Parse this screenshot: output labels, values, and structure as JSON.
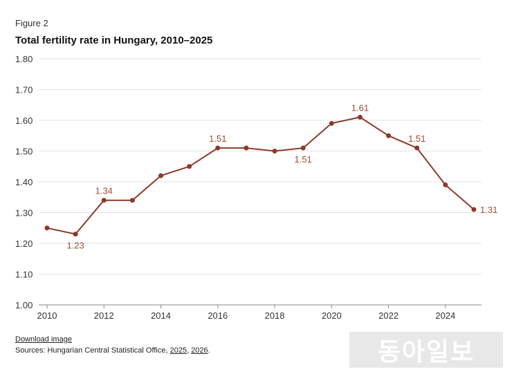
{
  "figure_label": "Figure 2",
  "title": "Total fertility rate in Hungary, 2010–2025",
  "footer": {
    "download_label": "Download image",
    "sources_prefix": "Sources: Hungarian Central Statistical Office, ",
    "source_link_1": "2025",
    "separator": ", ",
    "source_link_2": "2026",
    "suffix": "."
  },
  "watermark_text": "동아일보",
  "colors": {
    "line": "#8b3a2b",
    "label": "#a04a35",
    "grid": "#e3e3e3",
    "axis": "#888888"
  },
  "chart_data": {
    "type": "line",
    "title": "Total fertility rate in Hungary, 2010–2025",
    "xlabel": "",
    "ylabel": "",
    "x": [
      2010,
      2011,
      2012,
      2013,
      2014,
      2015,
      2016,
      2017,
      2018,
      2019,
      2020,
      2021,
      2022,
      2023,
      2024,
      2025
    ],
    "series": [
      {
        "values": [
          1.25,
          1.23,
          1.34,
          1.34,
          1.42,
          1.45,
          1.51,
          1.51,
          1.5,
          1.51,
          1.59,
          1.61,
          1.55,
          1.51,
          1.39,
          1.31
        ]
      }
    ],
    "xlim": [
      2010,
      2025
    ],
    "ylim": [
      1.0,
      1.8
    ],
    "x_ticks": [
      "2010",
      "2012",
      "2014",
      "2016",
      "2018",
      "2020",
      "2022",
      "2024"
    ],
    "y_ticks": [
      "1.00",
      "1.10",
      "1.20",
      "1.30",
      "1.40",
      "1.50",
      "1.60",
      "1.70",
      "1.80"
    ],
    "grid": true,
    "annotations": [
      {
        "x": 2011,
        "text": "1.23",
        "position": "below"
      },
      {
        "x": 2012,
        "text": "1.34",
        "position": "above"
      },
      {
        "x": 2016,
        "text": "1.51",
        "position": "above"
      },
      {
        "x": 2019,
        "text": "1.51",
        "position": "below"
      },
      {
        "x": 2021,
        "text": "1.61",
        "position": "above"
      },
      {
        "x": 2023,
        "text": "1.51",
        "position": "above"
      },
      {
        "x": 2025,
        "text": "1.31",
        "position": "right"
      }
    ]
  }
}
